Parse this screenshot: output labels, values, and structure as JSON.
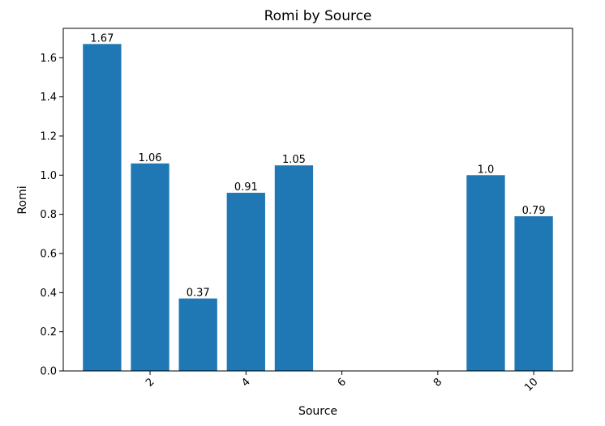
{
  "chart_data": {
    "type": "bar",
    "title": "Romi by Source",
    "xlabel": "Source",
    "ylabel": "Romi",
    "x": [
      1,
      2,
      3,
      4,
      5,
      9,
      10
    ],
    "values": [
      1.67,
      1.06,
      0.37,
      0.91,
      1.05,
      1.0,
      0.79
    ],
    "value_labels": [
      "1.67",
      "1.06",
      "0.37",
      "0.91",
      "1.05",
      "1.0",
      "0.79"
    ],
    "xlim": [
      0.19,
      10.81
    ],
    "ylim": [
      0,
      1.75
    ],
    "xticks": [
      2,
      4,
      6,
      8,
      10
    ],
    "xtick_labels": [
      "2",
      "4",
      "6",
      "8",
      "10"
    ],
    "xtick_rotation": 45,
    "yticks": [
      0.0,
      0.2,
      0.4,
      0.6,
      0.8,
      1.0,
      1.2,
      1.4,
      1.6
    ],
    "ytick_labels": [
      "0.0",
      "0.2",
      "0.4",
      "0.6",
      "0.8",
      "1.0",
      "1.2",
      "1.4",
      "1.6"
    ],
    "bar_width": 0.8,
    "grid": false,
    "color": "#1f77b4"
  }
}
